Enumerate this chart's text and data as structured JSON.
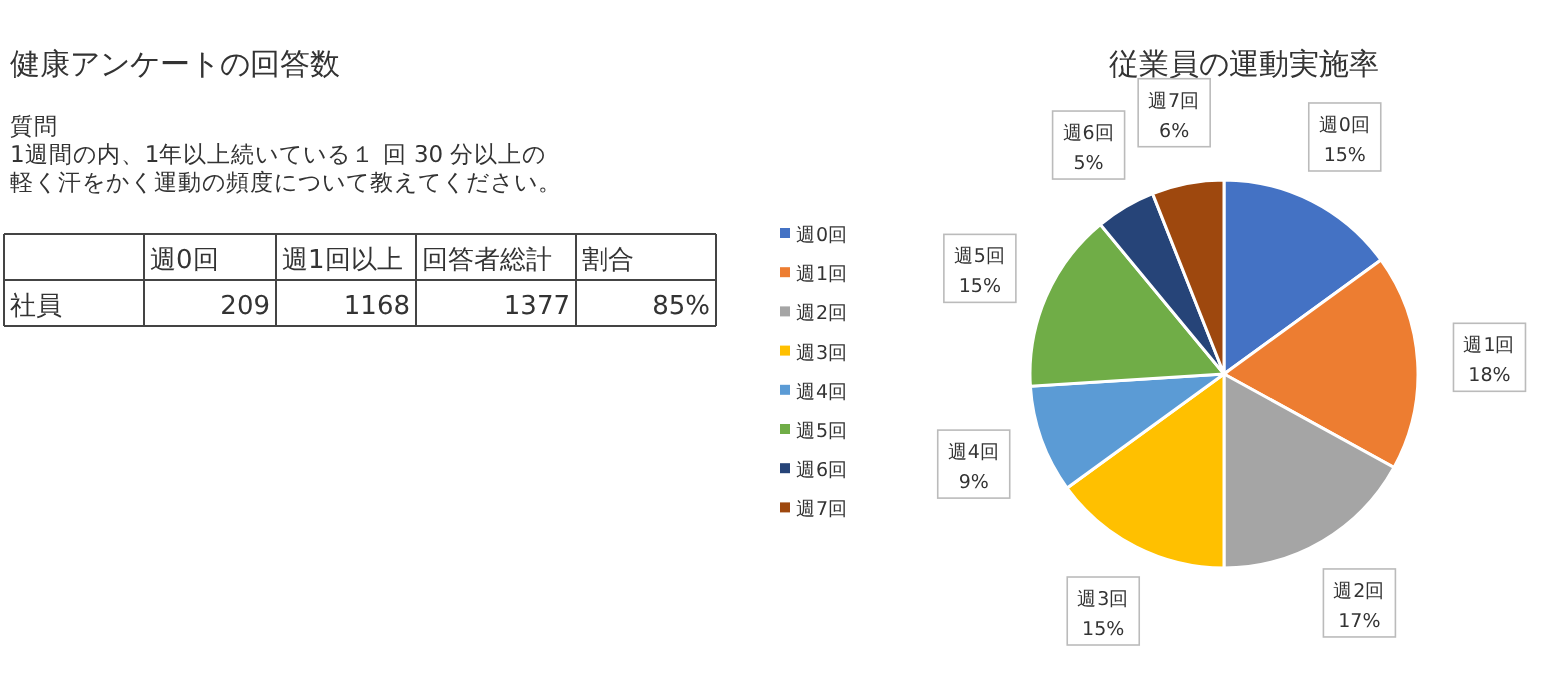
{
  "chart_data": [
    {
      "type": "other",
      "title": "健康アンケートの回答数",
      "annotations": [
        "質問",
        "1週間の内、1年以上続いている１ 回 30 分以上の",
        "軽く汗をかく運動の頻度について教えてください。"
      ],
      "categories": [
        "週0回",
        "週1回以上",
        "回答者総計",
        "割合"
      ],
      "y_categories": [
        "社員"
      ],
      "cell_labels": [
        [
          "209",
          "1168",
          "1377",
          "85%"
        ]
      ]
    },
    {
      "type": "pie",
      "title": "従業員の運動実施率",
      "categories": [
        "週0回",
        "週1回",
        "週2回",
        "週3回",
        "週4回",
        "週5回",
        "週6回",
        "週7回"
      ],
      "values": [
        15,
        18,
        17,
        15,
        9,
        15,
        5,
        6
      ],
      "colors": [
        "#4472c4",
        "#ed7d31",
        "#a5a5a5",
        "#ffc000",
        "#5b9bd5",
        "#70ad47",
        "#264478",
        "#9e480e"
      ],
      "value_labels": [
        "15%",
        "18%",
        "17%",
        "15%",
        "9%",
        "15%",
        "5%",
        "6%"
      ],
      "legend": "left"
    }
  ]
}
